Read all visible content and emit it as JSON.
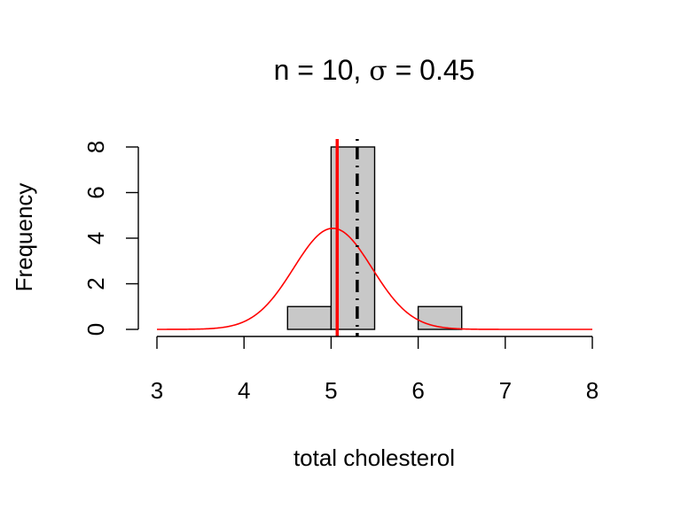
{
  "chart_data": {
    "type": "bar",
    "title": "n = 10, σ = 0.45",
    "title_parts": {
      "prefix": "n = 10, ",
      "sigma": "σ",
      "suffix": " = 0.45"
    },
    "xlabel": "total cholesterol",
    "ylabel": "Frequency",
    "xlim": [
      3,
      8
    ],
    "ylim": [
      0,
      8
    ],
    "x_ticks": [
      3,
      4,
      5,
      6,
      7,
      8
    ],
    "x_tick_labels": [
      "3",
      "4",
      "5",
      "6",
      "7",
      "8"
    ],
    "y_ticks": [
      0,
      2,
      4,
      6,
      8
    ],
    "y_tick_labels": [
      "0",
      "2",
      "4",
      "6",
      "8"
    ],
    "grid": false,
    "histogram": {
      "bins": [
        {
          "x0": 4.5,
          "x1": 5.0,
          "count": 1
        },
        {
          "x0": 5.0,
          "x1": 5.5,
          "count": 8
        },
        {
          "x0": 5.5,
          "x1": 6.0,
          "count": 0
        },
        {
          "x0": 6.0,
          "x1": 6.5,
          "count": 1
        }
      ],
      "fill": "#c8c8c8",
      "stroke": "#000000"
    },
    "normal_curve": {
      "mean": 5.02,
      "sd": 0.45,
      "n": 10,
      "bin_width": 0.5,
      "color": "#ff0000"
    },
    "reference_lines": [
      {
        "x": 5.07,
        "color": "#ff0000",
        "style": "solid"
      },
      {
        "x": 5.3,
        "color": "#000000",
        "style": "dashdot"
      }
    ]
  }
}
